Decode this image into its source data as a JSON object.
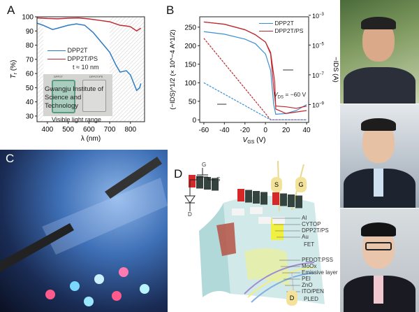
{
  "panel_labels": {
    "a": "A",
    "b": "B",
    "c": "C",
    "d": "D"
  },
  "chart_data": [
    {
      "type": "line",
      "panel": "A",
      "xlabel": "λ (nm)",
      "ylabel": "Tr (%)",
      "ylabel_main": "T",
      "ylabel_sub": "r",
      "ylabel_unit": " (%)",
      "xlim": [
        350,
        868
      ],
      "ylim": [
        26,
        100
      ],
      "xticks": [
        400,
        500,
        600,
        700,
        800
      ],
      "yticks": [
        30,
        40,
        50,
        60,
        70,
        80,
        90,
        100
      ],
      "legend_position": "left-middle",
      "annotation": "t ≈ 10 nm",
      "visible_range_label": "Visible light range",
      "visible_range": [
        380,
        700
      ],
      "inset_photo_labels": [
        "DPP2T",
        "DPP2T/PS"
      ],
      "inset_text": [
        "Gwangju Institute of",
        "Science and Technology"
      ],
      "series": [
        {
          "name": "DPP2T",
          "color": "#2b7bc4",
          "x": [
            350,
            380,
            425,
            450,
            500,
            540,
            580,
            620,
            660,
            700,
            730,
            750,
            780,
            800,
            830,
            845,
            850
          ],
          "y": [
            95.5,
            94,
            91,
            92,
            94,
            95,
            94,
            89,
            82,
            75,
            66,
            61,
            62,
            59,
            48,
            50,
            53
          ]
        },
        {
          "name": "DPP2T/PS",
          "color": "#c0282d",
          "x": [
            350,
            400,
            450,
            500,
            550,
            600,
            650,
            700,
            750,
            780,
            800,
            830,
            850
          ],
          "y": [
            99.2,
            98.8,
            98.6,
            99,
            99.2,
            98.5,
            97.5,
            96.5,
            94,
            93.5,
            93,
            90,
            92
          ]
        }
      ]
    },
    {
      "type": "line",
      "panel": "B",
      "xlabel": "VGS (V)",
      "xlabel_main": "V",
      "xlabel_sub": "GS",
      "xlabel_unit": " (V)",
      "ylabel": "(−IDS)^1/2 (× 10^−4 A^1/2)",
      "ylabel_right": "−IDS (A)",
      "xlim": [
        -64,
        42
      ],
      "ylim": [
        -7,
        278
      ],
      "ylim_right_log10": [
        -10.2,
        -3.1
      ],
      "xticks": [
        -60,
        -40,
        -20,
        0,
        20,
        40
      ],
      "yticks": [
        0,
        50,
        100,
        150,
        200,
        250
      ],
      "yticks_right": [
        "10-3",
        "10-5",
        "10-7",
        "10-9"
      ],
      "yticks_right_exp": [
        -3,
        -5,
        -7,
        -9
      ],
      "annotation": "VDS = −60 V",
      "annotation_main": "V",
      "annotation_sub": "DS",
      "annotation_rest": " = −60 V",
      "legend_position": "top-right",
      "series": [
        {
          "name": "DPP2T",
          "color": "#3d8fd1",
          "axis": "right-log",
          "x": [
            -60,
            -40,
            -20,
            -10,
            0,
            5,
            8,
            10,
            20,
            30,
            40
          ],
          "y_log10": [
            -4.1,
            -4.27,
            -4.6,
            -4.9,
            -5.6,
            -6.7,
            -9.0,
            -9.65,
            -9.6,
            -9.4,
            -9.0
          ]
        },
        {
          "name": "DPP2T/PS",
          "color": "#c0282d",
          "axis": "right-log",
          "x": [
            -60,
            -40,
            -20,
            -10,
            0,
            5,
            8,
            10,
            20,
            30,
            40
          ],
          "y_log10": [
            -3.45,
            -3.6,
            -3.97,
            -4.3,
            -4.8,
            -5.6,
            -7.9,
            -9.1,
            -9.15,
            -9.25,
            -9.1
          ]
        },
        {
          "color": "#c0282d",
          "axis": "right-log",
          "x": [
            -60,
            -40,
            -20,
            -10,
            0,
            5,
            9,
            10,
            20,
            30,
            40
          ],
          "y_log10": [
            -3.45,
            -3.6,
            -3.97,
            -4.3,
            -4.8,
            -5.5,
            -7.5,
            -9.3,
            -9.6,
            -9.5,
            -9.4
          ]
        },
        {
          "color": "#c0282d",
          "axis": "left",
          "dashed": true,
          "x": [
            -60,
            5,
            40
          ],
          "y": [
            220,
            0,
            0
          ]
        },
        {
          "color": "#3d8fd1",
          "axis": "left",
          "dashed": true,
          "x": [
            -60,
            5,
            40
          ],
          "y": [
            100,
            0,
            0
          ]
        }
      ]
    }
  ],
  "panel_d": {
    "labels": [
      "Al",
      "CYTOP",
      "DPP2T/PS",
      "Au",
      "FET",
      "PEDOT:PSS",
      "MoOx",
      "Emissive layer",
      "PEI",
      "ZnO",
      "ITO/PEN",
      "PLED"
    ],
    "electrodes": [
      "S",
      "G",
      "D"
    ],
    "circuit": [
      "G",
      "S",
      "D"
    ],
    "logo_letters": [
      "G",
      "I",
      "S",
      "T"
    ]
  }
}
